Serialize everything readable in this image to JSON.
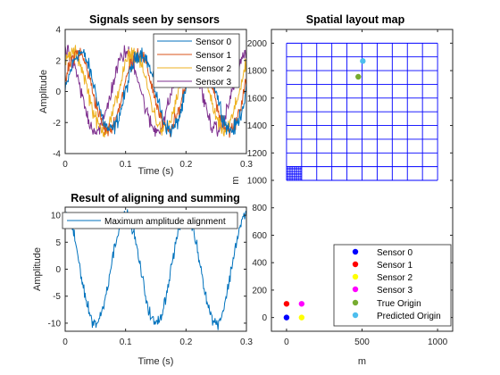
{
  "chart_data": [
    {
      "type": "line",
      "title": "Signals seen by sensors",
      "xlabel": "Time (s)",
      "ylabel": "Amplitude",
      "xlim": [
        0,
        0.3
      ],
      "ylim": [
        -4,
        4
      ],
      "xticks": [
        0,
        0.1,
        0.2,
        0.3
      ],
      "xtick_labels": [
        "0",
        "0.1",
        "0.2",
        "0.3"
      ],
      "yticks": [
        -4,
        -2,
        0,
        2,
        4
      ],
      "ytick_labels": [
        "-4",
        "-2",
        "0",
        "2",
        "4"
      ],
      "grid": false,
      "legend_position": "top-right",
      "signal": {
        "frequency_hz": 10,
        "amplitude": 2.5,
        "noise": 0.45,
        "sample_step_s": 0.001
      },
      "series": [
        {
          "name": "Sensor 0",
          "color": "#0072BD",
          "phase_s": 0.0
        },
        {
          "name": "Sensor 1",
          "color": "#D95319",
          "phase_s": 0.004
        },
        {
          "name": "Sensor 2",
          "color": "#EDB120",
          "phase_s": 0.012
        },
        {
          "name": "Sensor 3",
          "color": "#7E2F8E",
          "phase_s": 0.024
        }
      ]
    },
    {
      "type": "line",
      "title": "Result of aligning and summing",
      "xlabel": "Time (s)",
      "ylabel": "Amplitude",
      "xlim": [
        0,
        0.3
      ],
      "ylim": [
        -11.5,
        11.5
      ],
      "xticks": [
        0,
        0.1,
        0.2,
        0.3
      ],
      "xtick_labels": [
        "0",
        "0.1",
        "0.2",
        "0.3"
      ],
      "yticks": [
        -10,
        -5,
        0,
        5,
        10
      ],
      "ytick_labels": [
        "-10",
        "-5",
        "0",
        "5",
        "10"
      ],
      "grid": false,
      "legend_position": "top",
      "signal": {
        "frequency_hz": 10,
        "amplitude": 10,
        "noise": 1.0,
        "sample_step_s": 0.001
      },
      "series": [
        {
          "name": "Maximum amplitude alignment",
          "color": "#0072BD"
        }
      ]
    },
    {
      "type": "scatter",
      "title": "Spatial layout map",
      "xlabel": "m",
      "ylabel": "m",
      "xlim": [
        -100,
        1100
      ],
      "ylim": [
        -100,
        2100
      ],
      "xticks": [
        0,
        500,
        1000
      ],
      "xtick_labels": [
        "0",
        "500",
        "1000"
      ],
      "yticks": [
        0,
        200,
        400,
        600,
        800,
        1000,
        1200,
        1400,
        1600,
        1800,
        2000
      ],
      "ytick_labels": [
        "0",
        "200",
        "400",
        "600",
        "800",
        "1000",
        "1200",
        "1400",
        "1600",
        "1800",
        "2000"
      ],
      "legend_position": "bottom-right",
      "grid_mesh": {
        "x_range": [
          0,
          1000
        ],
        "y_range": [
          1000,
          2000
        ],
        "step": 100,
        "color": "#0000FF"
      },
      "fine_mesh": {
        "x_range": [
          0,
          100
        ],
        "y_range": [
          1000,
          1100
        ],
        "step": 10,
        "color": "#0000FF"
      },
      "points": [
        {
          "name": "Sensor 0",
          "x": 0,
          "y": 0,
          "color": "#0000FF"
        },
        {
          "name": "Sensor 1",
          "x": 0,
          "y": 100,
          "color": "#FF0000"
        },
        {
          "name": "Sensor 2",
          "x": 100,
          "y": 0,
          "color": "#FFFF00"
        },
        {
          "name": "Sensor 3",
          "x": 100,
          "y": 100,
          "color": "#FF00FF"
        },
        {
          "name": "True Origin",
          "x": 475,
          "y": 1755,
          "color": "#77AC30"
        },
        {
          "name": "Predicted Origin",
          "x": 505,
          "y": 1870,
          "color": "#4DBEEE"
        }
      ]
    }
  ]
}
